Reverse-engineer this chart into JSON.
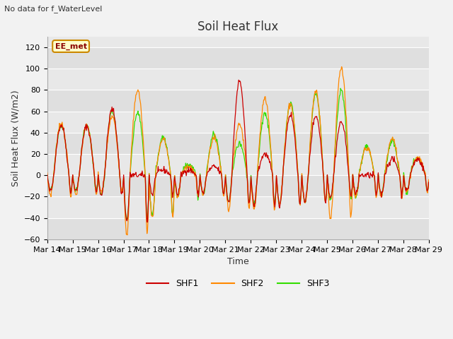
{
  "title": "Soil Heat Flux",
  "subtitle": "No data for f_WaterLevel",
  "ylabel": "Soil Heat Flux (W/m2)",
  "xlabel": "Time",
  "station_label": "EE_met",
  "ylim": [
    -60,
    130
  ],
  "yticks": [
    -60,
    -40,
    -20,
    0,
    20,
    40,
    60,
    80,
    100,
    120
  ],
  "colors": {
    "SHF1": "#cc0000",
    "SHF2": "#ff8800",
    "SHF3": "#33dd00"
  },
  "axes_facecolor": "#e8e8e8",
  "fig_facecolor": "#f2f2f2",
  "grid_color": "#ffffff",
  "n_days": 15,
  "pts_per_day": 48,
  "title_fontsize": 12,
  "label_fontsize": 9,
  "tick_fontsize": 8,
  "shf1_amp": [
    47,
    46,
    62,
    0,
    5,
    5,
    8,
    88,
    20,
    57,
    56,
    50,
    0,
    15,
    15
  ],
  "shf2_amp": [
    49,
    46,
    55,
    80,
    34,
    8,
    35,
    48,
    72,
    67,
    79,
    101,
    26,
    34,
    17
  ],
  "shf3_amp": [
    47,
    47,
    60,
    59,
    36,
    10,
    38,
    30,
    58,
    68,
    77,
    80,
    27,
    31,
    16
  ],
  "shf1_neg": [
    15,
    15,
    18,
    43,
    18,
    18,
    17,
    25,
    28,
    28,
    24,
    20,
    18,
    18,
    15
  ],
  "shf2_neg": [
    18,
    18,
    15,
    55,
    40,
    20,
    18,
    32,
    32,
    27,
    25,
    40,
    21,
    20,
    15
  ],
  "shf3_neg": [
    15,
    15,
    17,
    42,
    38,
    20,
    18,
    25,
    27,
    27,
    25,
    22,
    20,
    18,
    15
  ],
  "shf1_seed": 42,
  "shf2_seed": 7,
  "shf3_seed": 13,
  "start_day": 14,
  "start_month": "Mar"
}
